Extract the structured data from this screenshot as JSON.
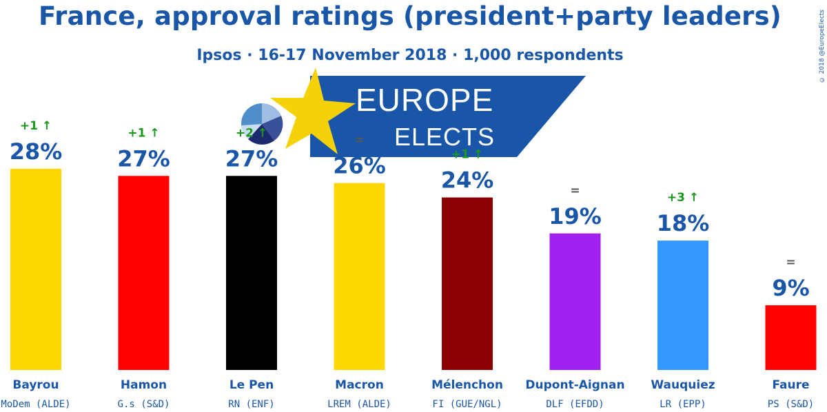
{
  "header": {
    "title": "France, approval ratings (president+party leaders)",
    "subtitle": "Ipsos · 16-17 November 2018 · 1,000 respondents",
    "copyright": "© 2018 @EuropeElects"
  },
  "logo": {
    "line1": "EUROPE",
    "line2": "ELECTS",
    "banner_color": "#1a56a8",
    "star_color": "#f5d10a"
  },
  "chart_data": {
    "type": "bar",
    "categories": [
      "Bayrou",
      "Hamon",
      "Le Pen",
      "Macron",
      "Mélenchon",
      "Dupont-Aignan",
      "Wauquiez",
      "Faure"
    ],
    "parties": [
      "MoDem (ALDE)",
      "G.s (S&D)",
      "RN (ENF)",
      "LREM (ALDE)",
      "FI (GUE/NGL)",
      "DLF (EFDD)",
      "LR (EPP)",
      "PS (S&D)"
    ],
    "values": [
      28,
      27,
      27,
      26,
      24,
      19,
      18,
      9
    ],
    "value_labels": [
      "28%",
      "27%",
      "27%",
      "26%",
      "24%",
      "19%",
      "18%",
      "9%"
    ],
    "changes": [
      "+1 ↑",
      "+1 ↑",
      "+2 ↑",
      "=",
      "+1 ↑",
      "=",
      "+3 ↑",
      "="
    ],
    "colors": [
      "#ffd700",
      "#ff0000",
      "#000000",
      "#ffd700",
      "#8b0000",
      "#a020f0",
      "#3399ff",
      "#ff0000"
    ],
    "ylim": [
      0,
      30
    ]
  }
}
